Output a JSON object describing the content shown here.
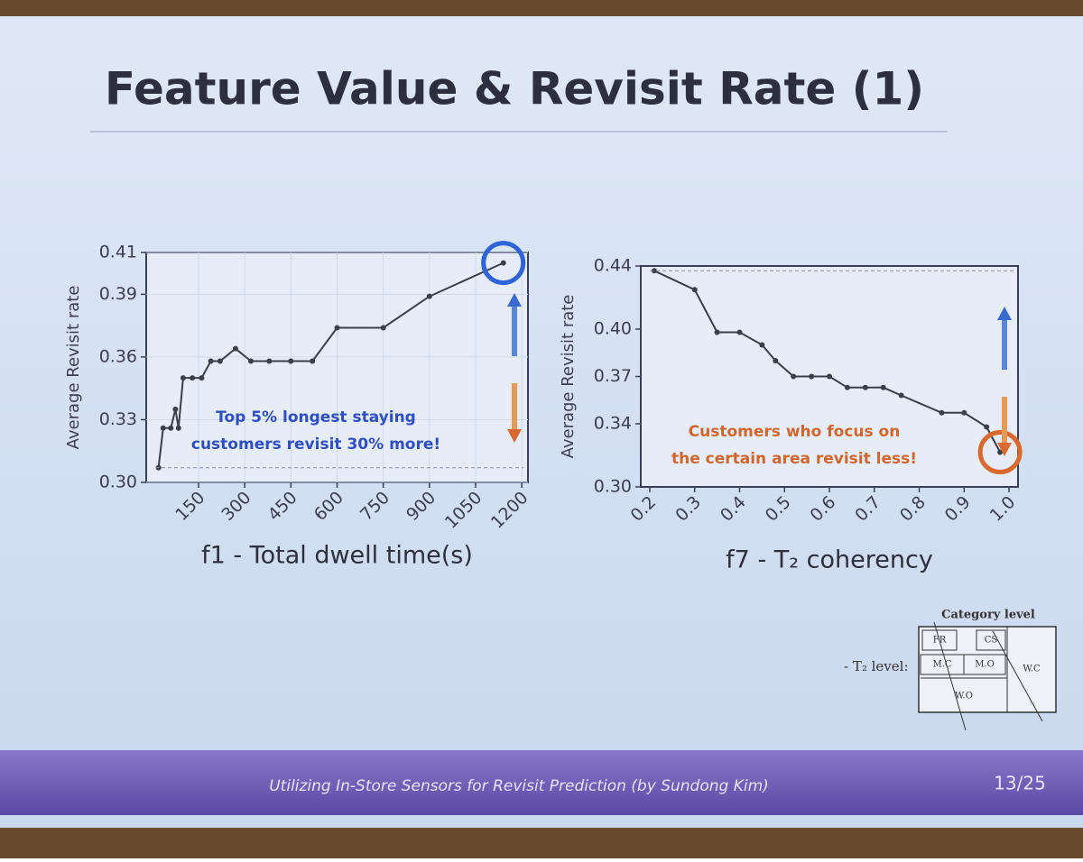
{
  "slide": {
    "title": "Feature Value & Revisit Rate (1)",
    "footer": "Utilizing In-Store Sensors for Revisit Prediction (by Sundong Kim)",
    "page": "13/25",
    "legend_diagram": {
      "heading": "Category level",
      "label": "- T₂ level:",
      "boxes": [
        "FR",
        "CS",
        "M.C",
        "M.O",
        "W.C",
        "W.O"
      ]
    }
  },
  "chart_data": [
    {
      "type": "line",
      "xlabel": "f1 - Total dwell time(s)",
      "ylabel": "Average Revisit rate",
      "annotation": [
        "Top 5% longest staying",
        "customers revisit 30% more!"
      ],
      "annotation_color": "#2f4fc0",
      "highlight_color": "#2f63d8",
      "grid": true,
      "x": [
        20,
        35,
        60,
        75,
        85,
        100,
        130,
        160,
        190,
        220,
        270,
        320,
        380,
        450,
        520,
        600,
        750,
        900,
        1140
      ],
      "series": [
        {
          "name": "f1",
          "color": "#3b3f4a",
          "values": [
            0.307,
            0.326,
            0.326,
            0.335,
            0.326,
            0.35,
            0.35,
            0.35,
            0.358,
            0.358,
            0.364,
            0.358,
            0.358,
            0.358,
            0.358,
            0.374,
            0.374,
            0.389,
            0.405
          ]
        }
      ],
      "xlim": [
        -20,
        1220
      ],
      "xticks": [
        150,
        300,
        450,
        600,
        750,
        900,
        1050,
        1200
      ],
      "ylim": [
        0.3,
        0.41
      ],
      "yticks": [
        {
          "value": 0.3,
          "label": "0.30"
        },
        0.33,
        0.36,
        0.39,
        0.41
      ]
    },
    {
      "type": "line",
      "xlabel": "f7 - T₂ coherency",
      "ylabel": "Average Revisit rate",
      "annotation": [
        "Customers who focus on",
        "the certain area revisit less!"
      ],
      "annotation_color": "#d0662e",
      "highlight_color": "#d9692f",
      "grid": false,
      "x": [
        0.21,
        0.3,
        0.35,
        0.4,
        0.45,
        0.48,
        0.52,
        0.56,
        0.6,
        0.64,
        0.68,
        0.72,
        0.76,
        0.85,
        0.9,
        0.95,
        0.98
      ],
      "series": [
        {
          "name": "f7",
          "color": "#3b3f4a",
          "values": [
            0.437,
            0.425,
            0.398,
            0.398,
            0.39,
            0.38,
            0.37,
            0.37,
            0.37,
            0.363,
            0.363,
            0.363,
            0.358,
            0.347,
            0.347,
            0.338,
            0.322
          ]
        }
      ],
      "xlim": [
        0.18,
        1.02
      ],
      "xticks": [
        0.2,
        0.3,
        0.4,
        0.5,
        0.6,
        0.7,
        0.8,
        0.9,
        {
          "value": 1.0,
          "label": "1.0"
        }
      ],
      "ylim": [
        0.3,
        0.44
      ],
      "yticks": [
        {
          "value": 0.3,
          "label": "0.30"
        },
        0.34,
        0.37,
        {
          "value": 0.4,
          "label": "0.40"
        },
        0.44
      ]
    }
  ]
}
